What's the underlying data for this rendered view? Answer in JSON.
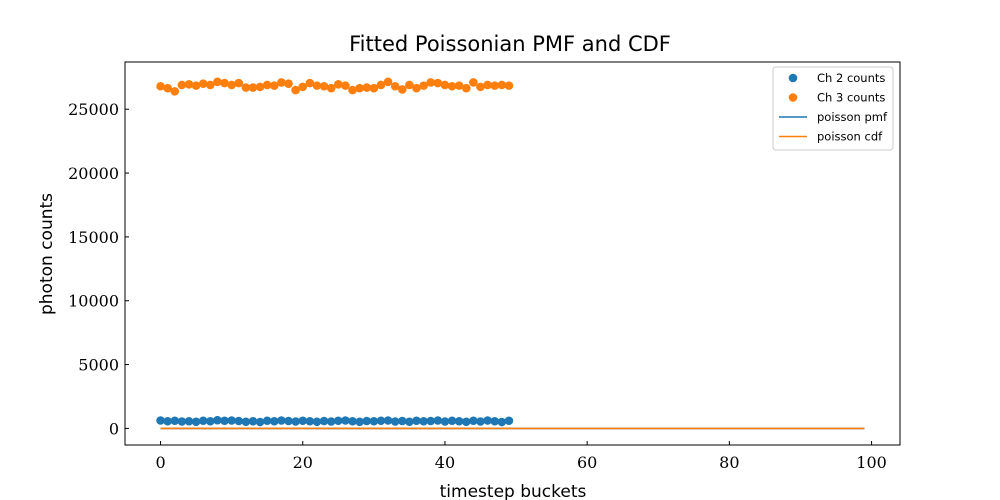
{
  "chart_data": {
    "type": "scatter",
    "title": "Fitted Poissonian PMF and CDF",
    "xlabel": "timestep buckets",
    "ylabel": "photon counts",
    "xlim": [
      -5,
      104
    ],
    "ylim": [
      -1300,
      28700
    ],
    "xticks": [
      0,
      20,
      40,
      60,
      80,
      100
    ],
    "yticks": [
      0,
      5000,
      10000,
      15000,
      20000,
      25000
    ],
    "legend_position": "top-right",
    "series": [
      {
        "name": "Ch 2 counts",
        "kind": "scatter",
        "color": "#1f77b4",
        "x": [
          0,
          1,
          2,
          3,
          4,
          5,
          6,
          7,
          8,
          9,
          10,
          11,
          12,
          13,
          14,
          15,
          16,
          17,
          18,
          19,
          20,
          21,
          22,
          23,
          24,
          25,
          26,
          27,
          28,
          29,
          30,
          31,
          32,
          33,
          34,
          35,
          36,
          37,
          38,
          39,
          40,
          41,
          42,
          43,
          44,
          45,
          46,
          47,
          48,
          49
        ],
        "y": [
          620,
          560,
          600,
          540,
          560,
          520,
          600,
          560,
          640,
          600,
          620,
          580,
          520,
          560,
          500,
          600,
          560,
          620,
          580,
          540,
          600,
          560,
          520,
          580,
          540,
          600,
          620,
          560,
          520,
          580,
          560,
          600,
          620,
          540,
          580,
          520,
          600,
          560,
          580,
          620,
          540,
          600,
          560,
          520,
          600,
          540,
          620,
          560,
          500,
          600
        ]
      },
      {
        "name": "Ch 3 counts",
        "kind": "scatter",
        "color": "#ff7f0e",
        "x": [
          0,
          1,
          2,
          3,
          4,
          5,
          6,
          7,
          8,
          9,
          10,
          11,
          12,
          13,
          14,
          15,
          16,
          17,
          18,
          19,
          20,
          21,
          22,
          23,
          24,
          25,
          26,
          27,
          28,
          29,
          30,
          31,
          32,
          33,
          34,
          35,
          36,
          37,
          38,
          39,
          40,
          41,
          42,
          43,
          44,
          45,
          46,
          47,
          48,
          49
        ],
        "y": [
          26800,
          26650,
          26400,
          26900,
          26950,
          26850,
          27000,
          26900,
          27150,
          27050,
          26900,
          27050,
          26700,
          26700,
          26750,
          26900,
          26850,
          27100,
          27000,
          26500,
          26750,
          27050,
          26850,
          26800,
          26650,
          26950,
          26850,
          26500,
          26650,
          26700,
          26650,
          26900,
          27150,
          26800,
          26550,
          26900,
          26650,
          26850,
          27100,
          27050,
          26900,
          26800,
          26850,
          26650,
          27100,
          26750,
          26900,
          26850,
          26900,
          26850
        ]
      },
      {
        "name": "poisson pmf",
        "kind": "line",
        "color": "#1f77b4",
        "x": [
          0,
          99
        ],
        "y": [
          0,
          0
        ]
      },
      {
        "name": "poisson cdf",
        "kind": "line",
        "color": "#ff7f0e",
        "x": [
          0,
          99
        ],
        "y": [
          0,
          0
        ]
      }
    ]
  }
}
